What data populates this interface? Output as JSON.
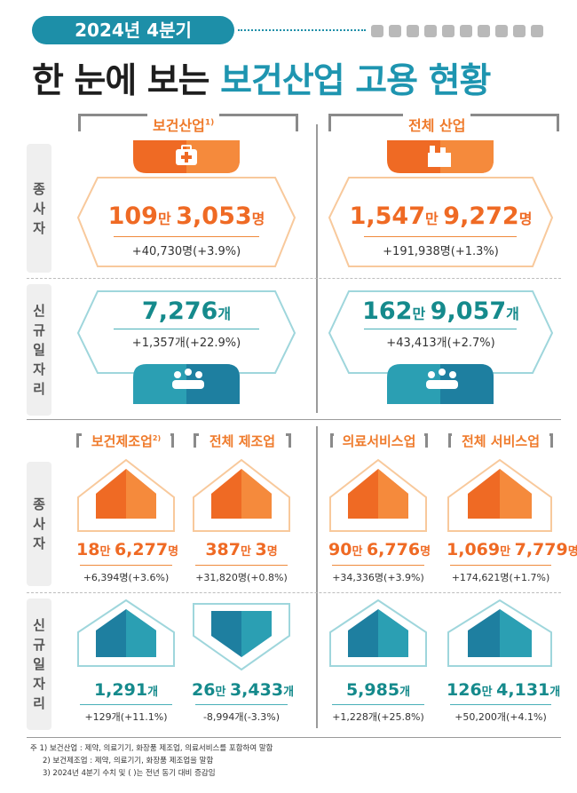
{
  "header": {
    "quarter": "2024년 4분기",
    "title_dark": "한 눈에 보는 ",
    "title_teal": "보건산업 고용 현황"
  },
  "sections": {
    "health_industry": "보건산업",
    "health_industry_mark": "1)",
    "all_industry": "전체 산업"
  },
  "row_labels": {
    "employees": [
      "종",
      "사",
      "자"
    ],
    "new_jobs": [
      "신",
      "규",
      "일",
      "자",
      "리"
    ]
  },
  "top": {
    "health_employees": {
      "main": "109",
      "unit1": "만 ",
      "rest": "3,053",
      "unit2": "명",
      "delta": "+40,730명(+3.9%)"
    },
    "all_employees": {
      "main": "1,547",
      "unit1": "만 ",
      "rest": "9,272",
      "unit2": "명",
      "delta": "+191,938명(+1.3%)"
    },
    "health_jobs": {
      "main": "",
      "unit1": "",
      "rest": "7,276",
      "unit2": "개",
      "delta": "+1,357개(+22.9%)"
    },
    "all_jobs": {
      "main": "162",
      "unit1": "만 ",
      "rest": "9,057",
      "unit2": "개",
      "delta": "+43,413개(+2.7%)"
    }
  },
  "categories": [
    {
      "label": "보건제조업",
      "mark": "2)",
      "employees": {
        "main": "18",
        "unit1": "만 ",
        "rest": "6,277",
        "unit2": "명",
        "delta": "+6,394명(+3.6%)"
      },
      "jobs": {
        "main": "",
        "unit1": "",
        "rest": "1,291",
        "unit2": "개",
        "delta": "+129개(+11.1%)"
      }
    },
    {
      "label": "전체 제조업",
      "mark": "",
      "employees": {
        "main": "387",
        "unit1": "만 ",
        "rest": "3",
        "unit2": "명",
        "delta": "+31,820명(+0.8%)"
      },
      "jobs": {
        "main": "26",
        "unit1": "만 ",
        "rest": "3,433",
        "unit2": "개",
        "delta": "-8,994개(-3.3%)"
      }
    },
    {
      "label": "의료서비스업",
      "mark": "",
      "employees": {
        "main": "90",
        "unit1": "만 ",
        "rest": "6,776",
        "unit2": "명",
        "delta": "+34,336명(+3.9%)"
      },
      "jobs": {
        "main": "",
        "unit1": "",
        "rest": "5,985",
        "unit2": "개",
        "delta": "+1,228개(+25.8%)"
      }
    },
    {
      "label": "전체 서비스업",
      "mark": "",
      "employees": {
        "main": "1,069",
        "unit1": "만 ",
        "rest": "7,779",
        "unit2": "명",
        "delta": "+174,621명(+1.7%)"
      },
      "jobs": {
        "main": "126",
        "unit1": "만 ",
        "rest": "4,131",
        "unit2": "개",
        "delta": "+50,200개(+4.1%)"
      }
    }
  ],
  "footnotes": [
    "주  1) 보건산업 : 제약, 의료기기, 화장품 제조업, 의료서비스를 포함하여 말함",
    "2) 보건제조업 : 제약, 의료기기, 화장품 제조업을 말함",
    "3) 2024년 4분기 수치 및 (  )는 전년 동기 대비 증감임"
  ],
  "colors": {
    "orange": "#ef6a24",
    "teal": "#1e95b0",
    "light_orange": "#f8c99c",
    "light_teal": "#9fd6dc"
  }
}
